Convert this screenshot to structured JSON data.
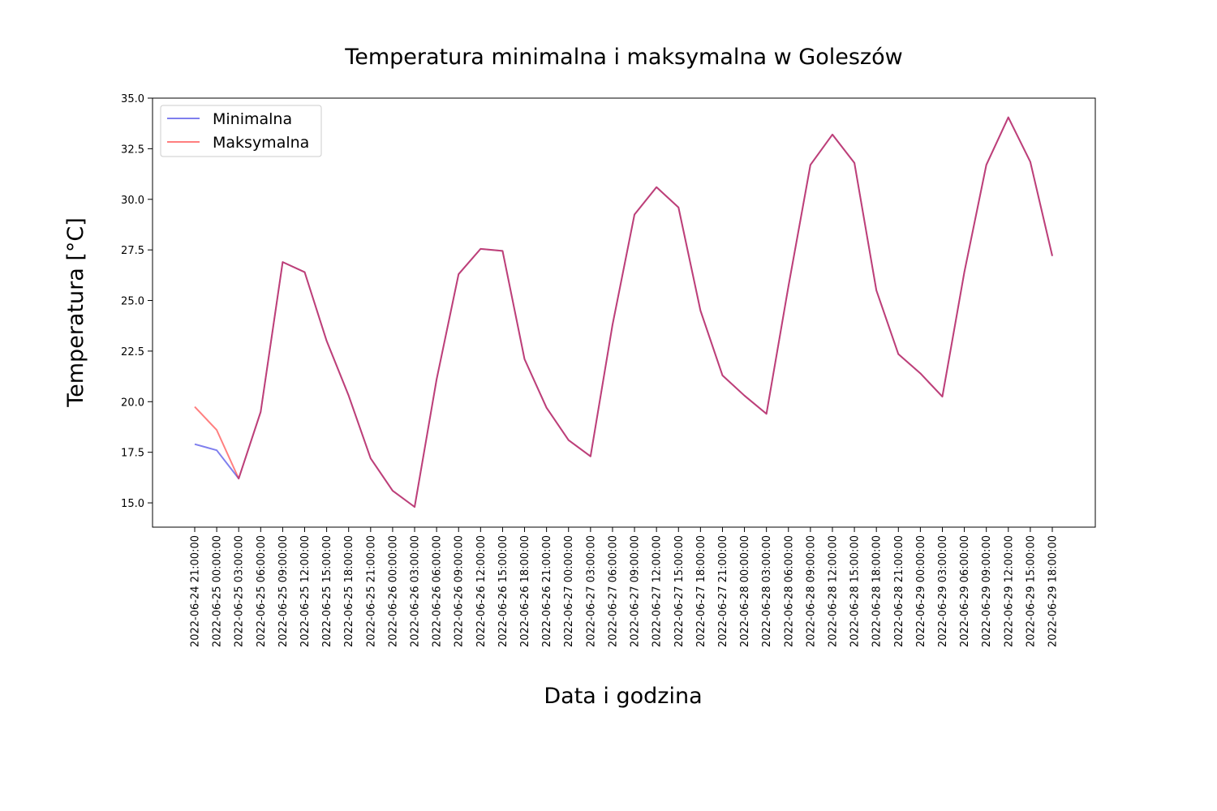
{
  "chart_data": {
    "type": "line",
    "title": "Temperatura minimalna i maksymalna w Goleszów",
    "xlabel": "Data i godzina",
    "ylabel": "Temperatura [°C]",
    "ylim": [
      13.8,
      35.0
    ],
    "yticks": [
      "15.0",
      "17.5",
      "20.0",
      "22.5",
      "25.0",
      "27.5",
      "30.0",
      "32.5",
      "35.0"
    ],
    "ytick_values": [
      15.0,
      17.5,
      20.0,
      22.5,
      25.0,
      27.5,
      30.0,
      32.5,
      35.0
    ],
    "legend_position": "top-left",
    "grid": false,
    "categories": [
      "2022-06-24 21:00:00",
      "2022-06-25 00:00:00",
      "2022-06-25 03:00:00",
      "2022-06-25 06:00:00",
      "2022-06-25 09:00:00",
      "2022-06-25 12:00:00",
      "2022-06-25 15:00:00",
      "2022-06-25 18:00:00",
      "2022-06-25 21:00:00",
      "2022-06-26 00:00:00",
      "2022-06-26 03:00:00",
      "2022-06-26 06:00:00",
      "2022-06-26 09:00:00",
      "2022-06-26 12:00:00",
      "2022-06-26 15:00:00",
      "2022-06-26 18:00:00",
      "2022-06-26 21:00:00",
      "2022-06-27 00:00:00",
      "2022-06-27 03:00:00",
      "2022-06-27 06:00:00",
      "2022-06-27 09:00:00",
      "2022-06-27 12:00:00",
      "2022-06-27 15:00:00",
      "2022-06-27 18:00:00",
      "2022-06-27 21:00:00",
      "2022-06-28 00:00:00",
      "2022-06-28 03:00:00",
      "2022-06-28 06:00:00",
      "2022-06-28 09:00:00",
      "2022-06-28 12:00:00",
      "2022-06-28 15:00:00",
      "2022-06-28 18:00:00",
      "2022-06-28 21:00:00",
      "2022-06-29 00:00:00",
      "2022-06-29 03:00:00",
      "2022-06-29 06:00:00",
      "2022-06-29 09:00:00",
      "2022-06-29 12:00:00",
      "2022-06-29 15:00:00",
      "2022-06-29 18:00:00"
    ],
    "series": [
      {
        "name": "Minimalna",
        "color": "#0000dd",
        "opacity": 0.5,
        "values": [
          17.9,
          17.6,
          16.2,
          19.5,
          26.9,
          26.4,
          23.0,
          20.3,
          17.2,
          15.6,
          14.8,
          21.1,
          26.3,
          27.55,
          27.45,
          22.1,
          19.7,
          18.1,
          17.3,
          23.8,
          29.25,
          30.6,
          29.6,
          24.5,
          21.3,
          20.3,
          19.4,
          25.7,
          31.7,
          33.2,
          31.8,
          25.5,
          22.35,
          21.4,
          20.25,
          26.4,
          31.7,
          34.05,
          31.85,
          27.2
        ]
      },
      {
        "name": "Maksymalna",
        "color": "#ff0000",
        "opacity": 0.5,
        "values": [
          19.75,
          18.6,
          16.2,
          19.5,
          26.9,
          26.4,
          23.0,
          20.3,
          17.2,
          15.6,
          14.8,
          21.1,
          26.3,
          27.55,
          27.45,
          22.1,
          19.7,
          18.1,
          17.3,
          23.8,
          29.25,
          30.6,
          29.6,
          24.5,
          21.3,
          20.3,
          19.4,
          25.7,
          31.7,
          33.2,
          31.8,
          25.5,
          22.35,
          21.4,
          20.25,
          26.4,
          31.7,
          34.05,
          31.85,
          27.2
        ]
      }
    ]
  }
}
